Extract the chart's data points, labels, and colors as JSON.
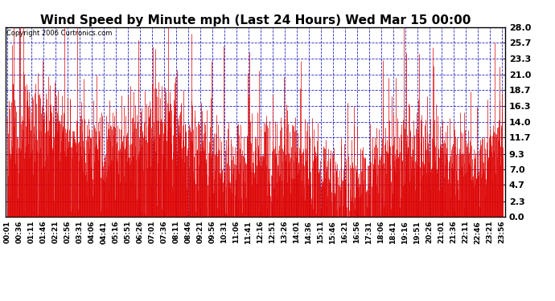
{
  "title": "Wind Speed by Minute mph (Last 24 Hours) Wed Mar 15 00:00",
  "copyright": "Copyright 2006 Curtronics.com",
  "yticks": [
    0.0,
    2.3,
    4.7,
    7.0,
    9.3,
    11.7,
    14.0,
    16.3,
    18.7,
    21.0,
    23.3,
    25.7,
    28.0
  ],
  "ymin": 0.0,
  "ymax": 28.0,
  "bar_color": "#dd0000",
  "bg_color": "#ffffff",
  "plot_bg_color": "#ffffff",
  "grid_color": "#0000bb",
  "title_fontsize": 11,
  "xlabel_fontsize": 6.5,
  "ylabel_fontsize": 8,
  "seed": 123,
  "n_minutes": 1440,
  "tick_every": 35
}
